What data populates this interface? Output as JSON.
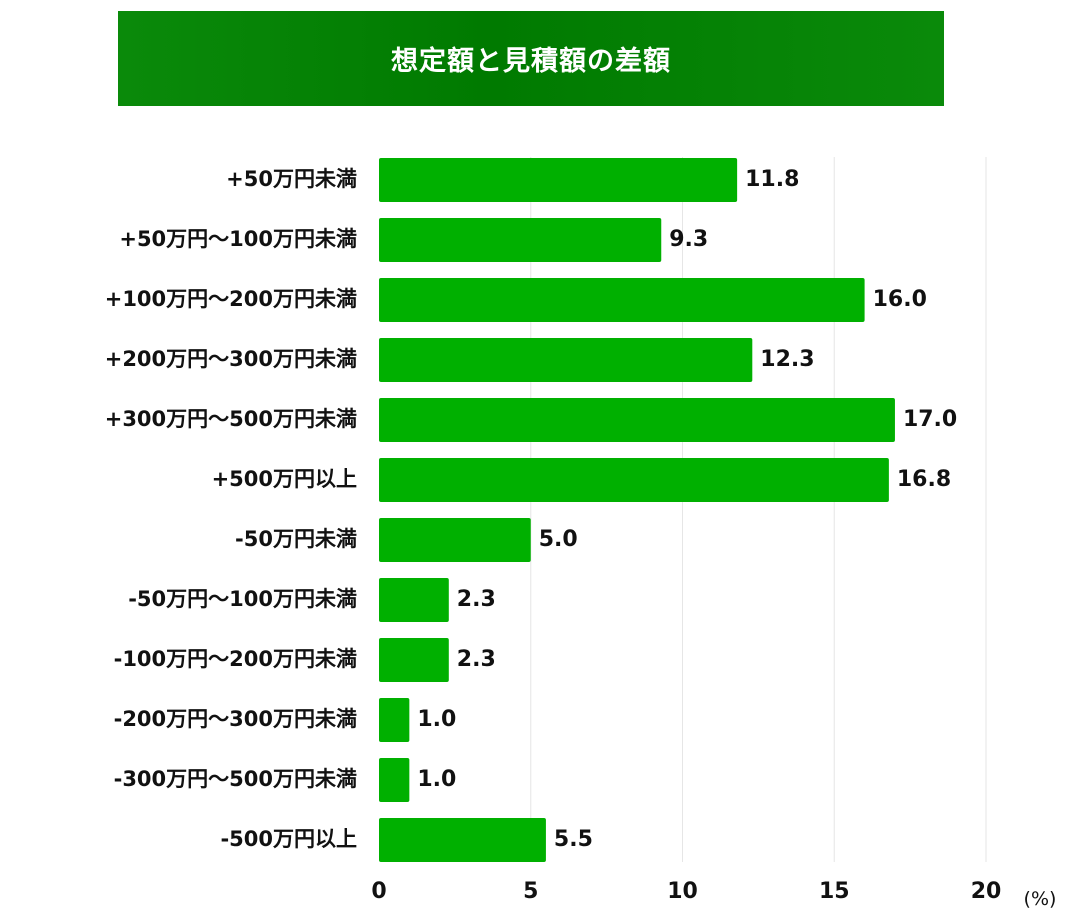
{
  "chart_data": {
    "type": "bar",
    "orientation": "horizontal",
    "title": "想定額と見積額の差額",
    "categories": [
      "+50万円未満",
      "+50万円〜100万円未満",
      "+100万円〜200万円未満",
      "+200万円〜300万円未満",
      "+300万円〜500万円未満",
      "+500万円以上",
      "-50万円未満",
      "-50万円〜100万円未満",
      "-100万円〜200万円未満",
      "-200万円〜300万円未満",
      "-300万円〜500万円未満",
      "-500万円以上"
    ],
    "values": [
      11.8,
      9.3,
      16.0,
      12.3,
      17.0,
      16.8,
      5.0,
      2.3,
      2.3,
      1.0,
      1.0,
      5.5
    ],
    "value_labels": [
      "11.8",
      "9.3",
      "16.0",
      "12.3",
      "17.0",
      "16.8",
      "5.0",
      "2.3",
      "2.3",
      "1.0",
      "1.0",
      "5.5"
    ],
    "xlim": [
      0,
      20
    ],
    "xticks": [
      0,
      5,
      10,
      15,
      20
    ],
    "xtick_labels": [
      "0",
      "5",
      "10",
      "15",
      "20"
    ],
    "unit_label": "(%)",
    "grid": true,
    "legend": "none",
    "colors": {
      "bar": "#00b000",
      "title_background": "#007a00",
      "title_text": "#ffffff",
      "gridline": "#e6e6e6"
    }
  }
}
